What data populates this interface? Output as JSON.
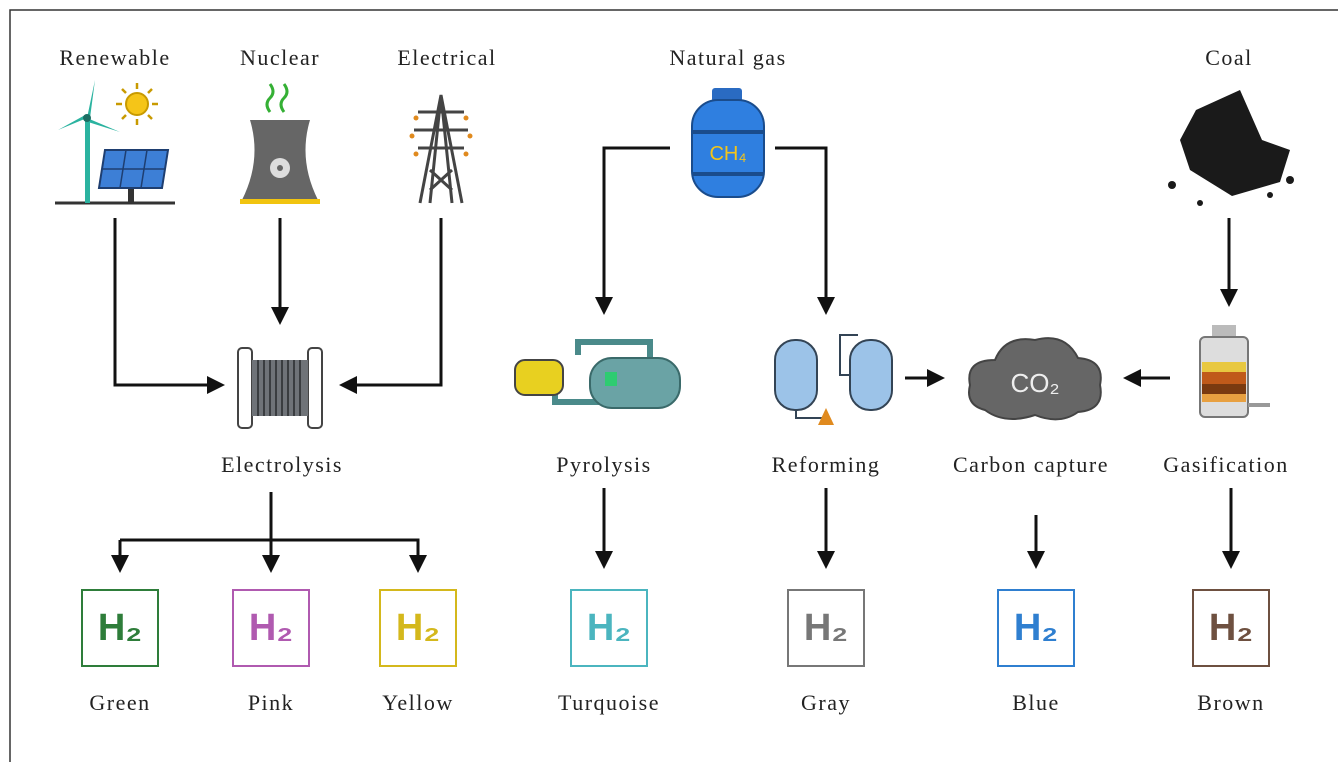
{
  "sources": [
    "Renewable",
    "Nuclear",
    "Electrical",
    "Natural gas",
    "Coal"
  ],
  "processes": [
    "Electrolysis",
    "Pyrolysis",
    "Reforming",
    "Carbon capture",
    "Gasification"
  ],
  "icon_text": {
    "methane": "CH₄",
    "carbon_dioxide": "CO₂",
    "hydrogen": "H₂"
  },
  "products": [
    {
      "label": "Green",
      "color": "#2e7d3a"
    },
    {
      "label": "Pink",
      "color": "#b05ab0"
    },
    {
      "label": "Yellow",
      "color": "#d4b81c"
    },
    {
      "label": "Turquoise",
      "color": "#4bb5bf"
    },
    {
      "label": "Gray",
      "color": "#777777"
    },
    {
      "label": "Blue",
      "color": "#2f7fd0"
    },
    {
      "label": "Brown",
      "color": "#6e5040"
    }
  ]
}
